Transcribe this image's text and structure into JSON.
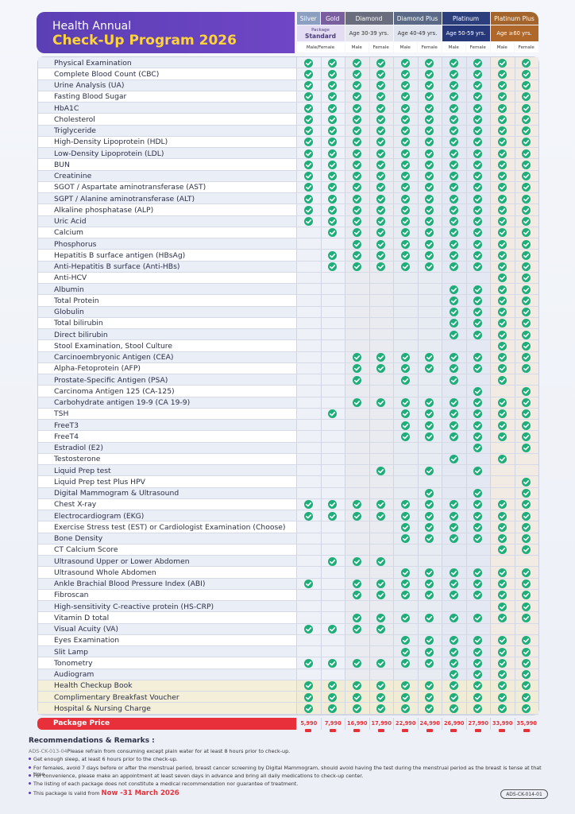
{
  "header": {
    "title": "Health Annual",
    "subtitle": "Check-Up Program 2026",
    "groups": [
      {
        "name": "Silver",
        "span": 1
      },
      {
        "name": "Gold",
        "span": 1
      },
      {
        "name": "Diamond",
        "span": 2
      },
      {
        "name": "Diamond Plus",
        "span": 2
      },
      {
        "name": "Platinum",
        "span": 2
      },
      {
        "name": "Platinum Plus",
        "span": 2
      }
    ],
    "subs": [
      {
        "label": "Package",
        "strong": "Standard"
      },
      {
        "label": "Age 30-39 yrs."
      },
      {
        "label": "Age 40-49 yrs."
      },
      {
        "label": "Age 50-59 yrs."
      },
      {
        "label": "Age ≥60 yrs."
      }
    ],
    "sexes": [
      "Male/Female",
      "Male",
      "Female",
      "Male",
      "Female",
      "Male",
      "Female",
      "Male",
      "Female"
    ]
  },
  "table": {
    "rows": [
      {
        "label": "Physical Examination",
        "checks": [
          1,
          1,
          1,
          1,
          1,
          1,
          1,
          1,
          1,
          1
        ]
      },
      {
        "label": "Complete Blood Count (CBC)",
        "checks": [
          1,
          1,
          1,
          1,
          1,
          1,
          1,
          1,
          1,
          1
        ]
      },
      {
        "label": "Urine Analysis (UA)",
        "checks": [
          1,
          1,
          1,
          1,
          1,
          1,
          1,
          1,
          1,
          1
        ]
      },
      {
        "label": "Fasting Blood Sugar",
        "checks": [
          1,
          1,
          1,
          1,
          1,
          1,
          1,
          1,
          1,
          1
        ]
      },
      {
        "label": "HbA1C",
        "checks": [
          1,
          1,
          1,
          1,
          1,
          1,
          1,
          1,
          1,
          1
        ]
      },
      {
        "label": "Cholesterol",
        "checks": [
          1,
          1,
          1,
          1,
          1,
          1,
          1,
          1,
          1,
          1
        ]
      },
      {
        "label": "Triglyceride",
        "checks": [
          1,
          1,
          1,
          1,
          1,
          1,
          1,
          1,
          1,
          1
        ]
      },
      {
        "label": "High-Density Lipoprotein (HDL)",
        "checks": [
          1,
          1,
          1,
          1,
          1,
          1,
          1,
          1,
          1,
          1
        ]
      },
      {
        "label": "Low-Density Lipoprotein (LDL)",
        "checks": [
          1,
          1,
          1,
          1,
          1,
          1,
          1,
          1,
          1,
          1
        ]
      },
      {
        "label": "BUN",
        "checks": [
          1,
          1,
          1,
          1,
          1,
          1,
          1,
          1,
          1,
          1
        ]
      },
      {
        "label": "Creatinine",
        "checks": [
          1,
          1,
          1,
          1,
          1,
          1,
          1,
          1,
          1,
          1
        ]
      },
      {
        "label": "SGOT / Aspartate aminotransferase (AST)",
        "checks": [
          1,
          1,
          1,
          1,
          1,
          1,
          1,
          1,
          1,
          1
        ]
      },
      {
        "label": "SGPT / Alanine aminotransferase (ALT)",
        "checks": [
          1,
          1,
          1,
          1,
          1,
          1,
          1,
          1,
          1,
          1
        ]
      },
      {
        "label": "Alkaline phosphatase (ALP)",
        "checks": [
          1,
          1,
          1,
          1,
          1,
          1,
          1,
          1,
          1,
          1
        ]
      },
      {
        "label": "Uric Acid",
        "checks": [
          1,
          1,
          1,
          1,
          1,
          1,
          1,
          1,
          1,
          1
        ]
      },
      {
        "label": "Calcium",
        "checks": [
          0,
          1,
          1,
          1,
          1,
          1,
          1,
          1,
          1,
          1
        ]
      },
      {
        "label": "Phosphorus",
        "checks": [
          0,
          0,
          1,
          1,
          1,
          1,
          1,
          1,
          1,
          1
        ]
      },
      {
        "label": "Hepatitis B surface antigen (HBsAg)",
        "checks": [
          0,
          1,
          1,
          1,
          1,
          1,
          1,
          1,
          1,
          1
        ]
      },
      {
        "label": "Anti-Hepatitis B surface (Anti-HBs)",
        "checks": [
          0,
          1,
          1,
          1,
          1,
          1,
          1,
          1,
          1,
          1
        ]
      },
      {
        "label": "Anti-HCV",
        "checks": [
          0,
          0,
          0,
          0,
          0,
          0,
          0,
          0,
          1,
          1
        ]
      },
      {
        "label": "Albumin",
        "checks": [
          0,
          0,
          0,
          0,
          0,
          0,
          1,
          1,
          1,
          1
        ]
      },
      {
        "label": "Total Protein",
        "checks": [
          0,
          0,
          0,
          0,
          0,
          0,
          1,
          1,
          1,
          1
        ]
      },
      {
        "label": "Globulin",
        "checks": [
          0,
          0,
          0,
          0,
          0,
          0,
          1,
          1,
          1,
          1
        ]
      },
      {
        "label": "Total bilirubin",
        "checks": [
          0,
          0,
          0,
          0,
          0,
          0,
          1,
          1,
          1,
          1
        ]
      },
      {
        "label": "Direct bilirubin",
        "checks": [
          0,
          0,
          0,
          0,
          0,
          0,
          1,
          1,
          1,
          1
        ]
      },
      {
        "label": "Stool Examination, Stool Culture",
        "checks": [
          0,
          0,
          0,
          0,
          0,
          0,
          0,
          0,
          1,
          1
        ]
      },
      {
        "label": "Carcinoembryonic Antigen (CEA)",
        "checks": [
          0,
          0,
          1,
          1,
          1,
          1,
          1,
          1,
          1,
          1
        ]
      },
      {
        "label": "Alpha-Fetoprotein (AFP)",
        "checks": [
          0,
          0,
          1,
          1,
          1,
          1,
          1,
          1,
          1,
          1
        ]
      },
      {
        "label": "Prostate-Specific Antigen (PSA)",
        "checks": [
          0,
          0,
          1,
          0,
          1,
          0,
          1,
          0,
          1,
          0
        ]
      },
      {
        "label": "Carcinoma Antigen 125 (CA-125)",
        "checks": [
          0,
          0,
          0,
          0,
          0,
          0,
          0,
          1,
          0,
          1
        ]
      },
      {
        "label": "Carbohydrate antigen 19-9 (CA 19-9)",
        "checks": [
          0,
          0,
          1,
          1,
          1,
          1,
          1,
          1,
          1,
          1
        ]
      },
      {
        "label": "TSH",
        "checks": [
          0,
          1,
          0,
          0,
          1,
          1,
          1,
          1,
          1,
          1
        ]
      },
      {
        "label": "FreeT3",
        "checks": [
          0,
          0,
          0,
          0,
          1,
          1,
          1,
          1,
          1,
          1
        ]
      },
      {
        "label": "FreeT4",
        "checks": [
          0,
          0,
          0,
          0,
          1,
          1,
          1,
          1,
          1,
          1
        ]
      },
      {
        "label": "Estradiol (E2)",
        "checks": [
          0,
          0,
          0,
          0,
          0,
          0,
          0,
          1,
          0,
          1
        ]
      },
      {
        "label": "Testosterone",
        "checks": [
          0,
          0,
          0,
          0,
          0,
          0,
          1,
          0,
          1,
          0
        ]
      },
      {
        "label": "Liquid Prep test",
        "checks": [
          0,
          0,
          0,
          1,
          0,
          1,
          0,
          1,
          0,
          0
        ]
      },
      {
        "label": "Liquid Prep test Plus HPV",
        "checks": [
          0,
          0,
          0,
          0,
          0,
          0,
          0,
          0,
          0,
          1
        ]
      },
      {
        "label": "Digital Mammogram & Ultrasound",
        "checks": [
          0,
          0,
          0,
          0,
          0,
          1,
          0,
          1,
          0,
          1
        ]
      },
      {
        "label": "Chest X-ray",
        "checks": [
          1,
          1,
          1,
          1,
          1,
          1,
          1,
          1,
          1,
          1
        ]
      },
      {
        "label": "Electrocardiogram (EKG)",
        "checks": [
          1,
          1,
          1,
          1,
          1,
          1,
          1,
          1,
          1,
          1
        ]
      },
      {
        "label": "Exercise Stress test (EST) or Cardiologist Examination (Choose)",
        "checks": [
          0,
          0,
          0,
          0,
          1,
          1,
          1,
          1,
          1,
          1
        ]
      },
      {
        "label": "Bone Density",
        "checks": [
          0,
          0,
          0,
          0,
          1,
          1,
          1,
          1,
          1,
          1
        ]
      },
      {
        "label": "CT Calcium Score",
        "checks": [
          0,
          0,
          0,
          0,
          0,
          0,
          0,
          0,
          1,
          1
        ]
      },
      {
        "label": "Ultrasound  Upper or Lower Abdomen",
        "checks": [
          0,
          1,
          1,
          1,
          0,
          0,
          0,
          0,
          0,
          0
        ]
      },
      {
        "label": "Ultrasound  Whole Abdomen",
        "checks": [
          0,
          0,
          0,
          0,
          1,
          1,
          1,
          1,
          1,
          1
        ]
      },
      {
        "label": "Ankle Brachial Blood Pressure Index (ABI)",
        "checks": [
          1,
          0,
          1,
          1,
          1,
          1,
          1,
          1,
          1,
          1
        ]
      },
      {
        "label": "Fibroscan",
        "checks": [
          0,
          0,
          1,
          1,
          1,
          1,
          1,
          1,
          1,
          1
        ]
      },
      {
        "label": "High-sensitivity C-reactive protein (HS-CRP)",
        "checks": [
          0,
          0,
          0,
          0,
          0,
          0,
          0,
          0,
          1,
          1
        ]
      },
      {
        "label": "Vitamin D total",
        "checks": [
          0,
          0,
          1,
          1,
          1,
          1,
          1,
          1,
          1,
          1
        ]
      },
      {
        "label": "Visual Acuity (VA)",
        "checks": [
          1,
          1,
          1,
          1,
          0,
          0,
          0,
          0,
          0,
          0
        ]
      },
      {
        "label": "Eyes Examination",
        "checks": [
          0,
          0,
          0,
          0,
          1,
          1,
          1,
          1,
          1,
          1
        ]
      },
      {
        "label": "Slit Lamp",
        "checks": [
          0,
          0,
          0,
          0,
          1,
          1,
          1,
          1,
          1,
          1
        ]
      },
      {
        "label": "Tonometry",
        "checks": [
          1,
          1,
          1,
          1,
          1,
          1,
          1,
          1,
          1,
          1
        ]
      },
      {
        "label": "Audiogram",
        "checks": [
          0,
          0,
          0,
          0,
          0,
          0,
          1,
          1,
          1,
          1
        ]
      },
      {
        "label": "Health Checkup Book",
        "checks": [
          1,
          1,
          1,
          1,
          1,
          1,
          1,
          1,
          1,
          1
        ]
      },
      {
        "label": "Complimentary Breakfast Voucher",
        "checks": [
          1,
          1,
          1,
          1,
          1,
          1,
          1,
          1,
          1,
          1
        ]
      },
      {
        "label": "Hospital & Nursing Charge",
        "checks": [
          1,
          1,
          1,
          1,
          1,
          1,
          1,
          1,
          1,
          1
        ]
      }
    ],
    "price_label": "Package Price",
    "prices": [
      "5,990",
      "7,990",
      "16,990",
      "17,990",
      "22,990",
      "24,990",
      "26,990",
      "27,990",
      "33,990",
      "35,990"
    ]
  },
  "remarks": {
    "title": "Recommendations & Remarks :",
    "code": "ADS-CK-013-04",
    "items": [
      "Please refrain from consuming except plain water for at least 8 hours prior to check-up.",
      "Get enough sleep, at least 6 hours prior to the check-up.",
      "For females, avoid 7 days before or after the menstrual period, breast cancer screening by Digital Mammogram, should avoid having the test during the menstrual period as the breast is tense at that time.",
      "For convenience, please make an appointment at least seven days in advance and bring all daily medications to check-up center.",
      "The listing of each package does not constitute a medical recommendation nor guarantee of treatment."
    ],
    "valid_text": "This package is valid from ",
    "valid_date": "Now -31 March 2026"
  },
  "footer_code": "ADS-CK-014-01"
}
